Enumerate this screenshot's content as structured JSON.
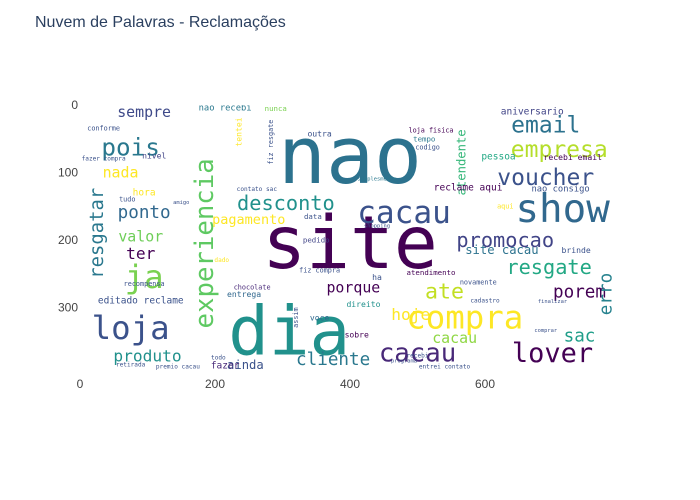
{
  "chart_data": {
    "type": "image",
    "title": "Nuvem de Palavras - Reclamações",
    "image_width": 800,
    "image_height": 400,
    "xaxis": {
      "range": [
        0,
        800
      ],
      "ticks": [
        0,
        200,
        400,
        600
      ]
    },
    "yaxis": {
      "range": [
        400,
        0
      ],
      "reversed": true,
      "ticks": [
        0,
        100,
        200,
        300
      ]
    },
    "background": "#ffffff",
    "colormap": "viridis",
    "words": [
      {
        "text": "nao",
        "x": 400,
        "y": 75,
        "size": 118,
        "color": "#2c728e"
      },
      {
        "text": "site",
        "x": 400,
        "y": 205,
        "size": 108,
        "color": "#440154"
      },
      {
        "text": "dia",
        "x": 310,
        "y": 335,
        "size": 100,
        "color": "#21918c"
      },
      {
        "text": "compra",
        "x": 570,
        "y": 315,
        "size": 48,
        "color": "#fde725"
      },
      {
        "text": "show",
        "x": 715,
        "y": 155,
        "size": 58,
        "color": "#31688e"
      },
      {
        "text": "cacau",
        "x": 480,
        "y": 160,
        "size": 46,
        "color": "#3b528b"
      },
      {
        "text": "experiencia",
        "x": 185,
        "y": 205,
        "size": 38,
        "color": "#5ec962",
        "rotate": -90
      },
      {
        "text": "loja",
        "x": 75,
        "y": 330,
        "size": 48,
        "color": "#3b528b"
      },
      {
        "text": "lover",
        "x": 700,
        "y": 368,
        "size": 40,
        "color": "#440154"
      },
      {
        "text": "cacau",
        "x": 500,
        "y": 368,
        "size": 38,
        "color": "#482878"
      },
      {
        "text": "ja",
        "x": 95,
        "y": 255,
        "size": 48,
        "color": "#7ad151"
      },
      {
        "text": "pois",
        "x": 75,
        "y": 62,
        "size": 36,
        "color": "#2a788e"
      },
      {
        "text": "email",
        "x": 690,
        "y": 30,
        "size": 34,
        "color": "#2c728e"
      },
      {
        "text": "empresa",
        "x": 710,
        "y": 67,
        "size": 34,
        "color": "#b5de2b"
      },
      {
        "text": "voucher",
        "x": 690,
        "y": 108,
        "size": 34,
        "color": "#3b528b"
      },
      {
        "text": "desconto",
        "x": 305,
        "y": 145,
        "size": 30,
        "color": "#21918c"
      },
      {
        "text": "promocao",
        "x": 630,
        "y": 200,
        "size": 30,
        "color": "#414487"
      },
      {
        "text": "resgate",
        "x": 695,
        "y": 240,
        "size": 30,
        "color": "#22a884"
      },
      {
        "text": "resgatar",
        "x": 25,
        "y": 190,
        "size": 28,
        "color": "#2a788e",
        "rotate": -90
      },
      {
        "text": "ponto",
        "x": 95,
        "y": 160,
        "size": 26,
        "color": "#31688e"
      },
      {
        "text": "sempre",
        "x": 95,
        "y": 10,
        "size": 22,
        "color": "#3e4989"
      },
      {
        "text": "produto",
        "x": 100,
        "y": 372,
        "size": 24,
        "color": "#21918c"
      },
      {
        "text": "cliente",
        "x": 375,
        "y": 378,
        "size": 26,
        "color": "#2a788e"
      },
      {
        "text": "ate",
        "x": 540,
        "y": 277,
        "size": 32,
        "color": "#c2df23"
      },
      {
        "text": "porem",
        "x": 740,
        "y": 278,
        "size": 26,
        "color": "#440154"
      },
      {
        "text": "sac",
        "x": 740,
        "y": 343,
        "size": 26,
        "color": "#1f9e89"
      },
      {
        "text": "erro",
        "x": 780,
        "y": 280,
        "size": 26,
        "color": "#26828e",
        "rotate": -90
      },
      {
        "text": "hoje",
        "x": 490,
        "y": 310,
        "size": 24,
        "color": "#fde725"
      },
      {
        "text": "cacau",
        "x": 555,
        "y": 345,
        "size": 22,
        "color": "#8fd744"
      },
      {
        "text": "nada",
        "x": 60,
        "y": 100,
        "size": 22,
        "color": "#fde725"
      },
      {
        "text": "valor",
        "x": 90,
        "y": 195,
        "size": 22,
        "color": "#6ece58"
      },
      {
        "text": "ter",
        "x": 90,
        "y": 220,
        "size": 24,
        "color": "#440154"
      },
      {
        "text": "porque",
        "x": 405,
        "y": 270,
        "size": 22,
        "color": "#440154"
      },
      {
        "text": "pagamento",
        "x": 250,
        "y": 170,
        "size": 20,
        "color": "#fde725"
      },
      {
        "text": "ainda",
        "x": 245,
        "y": 385,
        "size": 18,
        "color": "#3b528b"
      },
      {
        "text": "site cacau",
        "x": 625,
        "y": 215,
        "size": 18,
        "color": "#2c728e"
      },
      {
        "text": "atendente",
        "x": 565,
        "y": 85,
        "size": 18,
        "color": "#35b779",
        "rotate": -90
      },
      {
        "text": "reclame aqui",
        "x": 575,
        "y": 123,
        "size": 14,
        "color": "#440154"
      },
      {
        "text": "nao consigo",
        "x": 712,
        "y": 125,
        "size": 13,
        "color": "#3b528b"
      },
      {
        "text": "recebi email",
        "x": 730,
        "y": 77,
        "size": 12,
        "color": "#440154"
      },
      {
        "text": "aniversario",
        "x": 670,
        "y": 10,
        "size": 14,
        "color": "#414487"
      },
      {
        "text": "pessoa",
        "x": 620,
        "y": 77,
        "size": 14,
        "color": "#22a884"
      },
      {
        "text": "nao recebi",
        "x": 215,
        "y": 5,
        "size": 13,
        "color": "#2a788e"
      },
      {
        "text": "nunca",
        "x": 290,
        "y": 5,
        "size": 11,
        "color": "#7ad151"
      },
      {
        "text": "editado reclame",
        "x": 90,
        "y": 290,
        "size": 14,
        "color": "#3b528b"
      },
      {
        "text": "fazer",
        "x": 215,
        "y": 387,
        "size": 14,
        "color": "#482878"
      },
      {
        "text": "hora",
        "x": 95,
        "y": 130,
        "size": 14,
        "color": "#fde725"
      },
      {
        "text": "tentei",
        "x": 235,
        "y": 40,
        "size": 12,
        "color": "#fde725",
        "rotate": -90
      },
      {
        "text": "atendimento",
        "x": 520,
        "y": 248,
        "size": 11,
        "color": "#440154"
      },
      {
        "text": "novamente",
        "x": 590,
        "y": 263,
        "size": 10,
        "color": "#3b528b"
      },
      {
        "text": "brinde",
        "x": 735,
        "y": 215,
        "size": 12,
        "color": "#3b528b"
      },
      {
        "text": "fiz compra",
        "x": 355,
        "y": 245,
        "size": 10,
        "color": "#3b528b"
      },
      {
        "text": "voce",
        "x": 355,
        "y": 315,
        "size": 12,
        "color": "#31688e"
      },
      {
        "text": "sobre",
        "x": 410,
        "y": 340,
        "size": 12,
        "color": "#440154"
      },
      {
        "text": "direito",
        "x": 420,
        "y": 295,
        "size": 12,
        "color": "#21918c"
      },
      {
        "text": "entrega",
        "x": 243,
        "y": 280,
        "size": 12,
        "color": "#31688e"
      },
      {
        "text": "chocolate",
        "x": 255,
        "y": 270,
        "size": 10,
        "color": "#482878"
      },
      {
        "text": "pedido",
        "x": 350,
        "y": 200,
        "size": 11,
        "color": "#414487"
      },
      {
        "text": "data",
        "x": 345,
        "y": 165,
        "size": 11,
        "color": "#3b528b"
      },
      {
        "text": "nivel",
        "x": 110,
        "y": 75,
        "size": 12,
        "color": "#414487"
      },
      {
        "text": "outra",
        "x": 355,
        "y": 42,
        "size": 12,
        "color": "#3b528b"
      },
      {
        "text": "tempo",
        "x": 510,
        "y": 50,
        "size": 11,
        "color": "#2a788e"
      },
      {
        "text": "loja fisica",
        "x": 520,
        "y": 38,
        "size": 10,
        "color": "#440154"
      },
      {
        "text": "fiz resgate",
        "x": 283,
        "y": 55,
        "size": 10,
        "color": "#3b528b",
        "rotate": -90
      },
      {
        "text": "simplesmente",
        "x": 440,
        "y": 110,
        "size": 8,
        "color": "#2a788e"
      },
      {
        "text": "contato sac",
        "x": 262,
        "y": 125,
        "size": 9,
        "color": "#3b528b"
      },
      {
        "text": "retirada",
        "x": 75,
        "y": 385,
        "size": 9,
        "color": "#3b528b"
      },
      {
        "text": "premio cacau",
        "x": 145,
        "y": 388,
        "size": 9,
        "color": "#3b528b"
      },
      {
        "text": "entrei contato",
        "x": 540,
        "y": 388,
        "size": 9,
        "color": "#3b528b"
      },
      {
        "text": "conforme",
        "x": 35,
        "y": 35,
        "size": 10,
        "color": "#3b528b"
      },
      {
        "text": "fazer compra",
        "x": 35,
        "y": 80,
        "size": 9,
        "color": "#3b528b"
      },
      {
        "text": "tudo",
        "x": 70,
        "y": 140,
        "size": 10,
        "color": "#3b528b"
      },
      {
        "text": "recompensa",
        "x": 95,
        "y": 265,
        "size": 10,
        "color": "#3b528b"
      },
      {
        "text": "cadastro",
        "x": 600,
        "y": 290,
        "size": 9,
        "color": "#3b528b"
      },
      {
        "text": "finalizar",
        "x": 700,
        "y": 292,
        "size": 8,
        "color": "#3b528b"
      },
      {
        "text": "aqui",
        "x": 630,
        "y": 150,
        "size": 10,
        "color": "#fde725"
      },
      {
        "text": "codigo",
        "x": 515,
        "y": 63,
        "size": 10,
        "color": "#3b528b"
      },
      {
        "text": "amigo",
        "x": 150,
        "y": 145,
        "size": 8,
        "color": "#3b528b"
      },
      {
        "text": "shopping",
        "x": 440,
        "y": 180,
        "size": 8,
        "color": "#3b528b"
      },
      {
        "text": "programa",
        "x": 480,
        "y": 380,
        "size": 8,
        "color": "#3b528b"
      },
      {
        "text": "ha",
        "x": 440,
        "y": 255,
        "size": 12,
        "color": "#3b528b"
      },
      {
        "text": "assim",
        "x": 320,
        "y": 315,
        "size": 10,
        "color": "#3b528b",
        "rotate": -90
      },
      {
        "text": "todo",
        "x": 205,
        "y": 375,
        "size": 9,
        "color": "#3b528b"
      },
      {
        "text": "recebi",
        "x": 500,
        "y": 372,
        "size": 9,
        "color": "#3b528b"
      },
      {
        "text": "dado",
        "x": 210,
        "y": 230,
        "size": 9,
        "color": "#fde725"
      },
      {
        "text": "comprar",
        "x": 690,
        "y": 335,
        "size": 8,
        "color": "#3b528b"
      }
    ]
  }
}
